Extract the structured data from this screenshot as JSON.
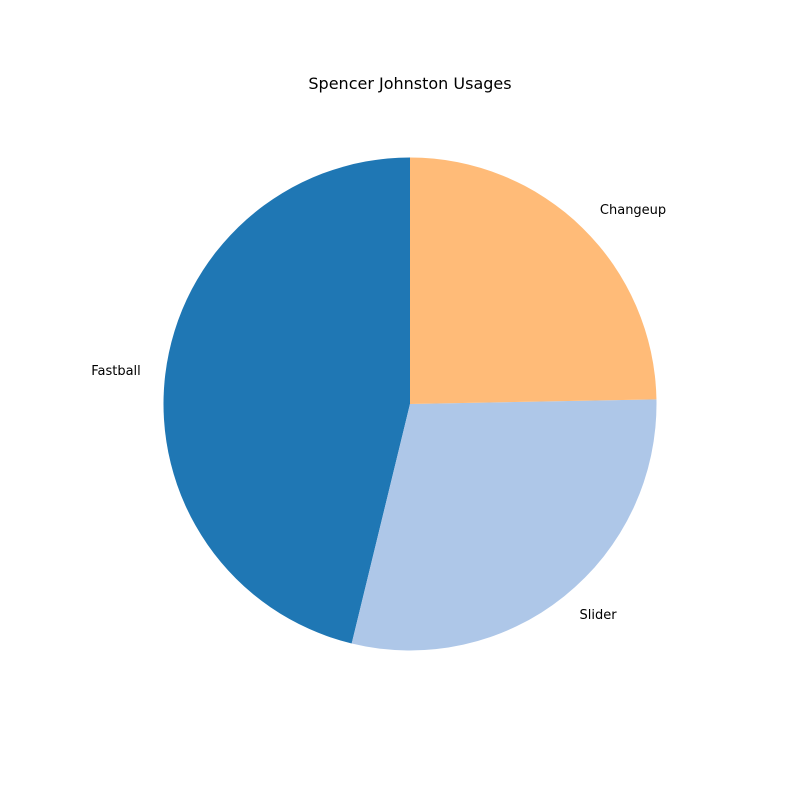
{
  "chart_data": {
    "type": "pie",
    "title": "Spencer Johnston Usages",
    "start_angle_deg": 90,
    "direction": "counterclockwise",
    "slices": [
      {
        "label": "Fastball",
        "value": 46.2,
        "color": "#1f77b4"
      },
      {
        "label": "Slider",
        "value": 29.1,
        "color": "#aec7e8"
      },
      {
        "label": "Changeup",
        "value": 24.7,
        "color": "#ffbb78"
      }
    ]
  }
}
